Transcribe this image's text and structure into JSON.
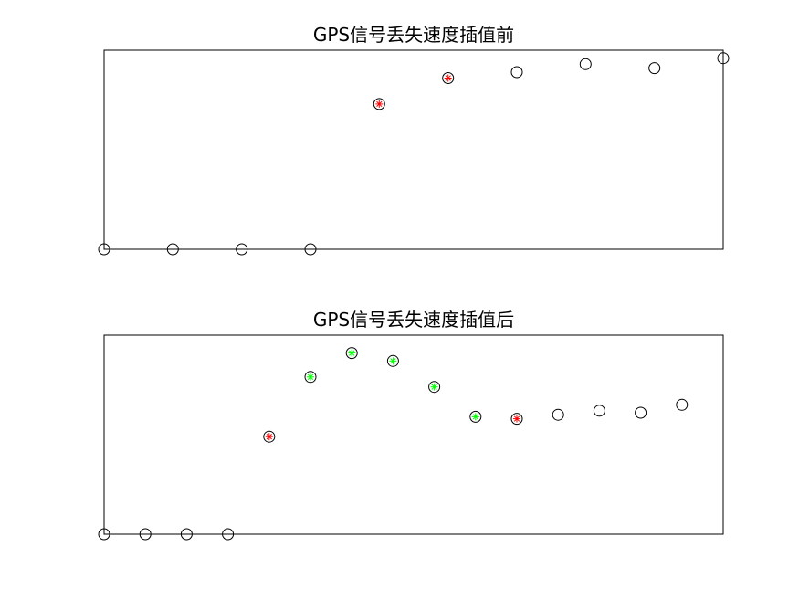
{
  "chart_data": [
    {
      "type": "scatter",
      "title": "GPS信号丢失速度插值前",
      "xlabel": "",
      "ylabel": "",
      "xlim": [
        1,
        10
      ],
      "ylim": [
        0,
        1
      ],
      "axes_visible": false,
      "grid": false,
      "legend": "none",
      "x": [
        1,
        2,
        3,
        4,
        5,
        6,
        7,
        8,
        9,
        10
      ],
      "y": [
        0,
        0,
        0,
        0,
        0.73,
        0.86,
        0.89,
        0.93,
        0.91,
        0.96
      ],
      "highlight_indices": [
        4,
        5
      ],
      "highlight_color": "#ff0000",
      "marker": "circle"
    },
    {
      "type": "scatter",
      "title": "GPS信号丢失速度插值后",
      "xlabel": "",
      "ylabel": "",
      "xlim": [
        1,
        16
      ],
      "ylim": [
        0,
        1
      ],
      "axes_visible": false,
      "grid": false,
      "legend": "none",
      "x": [
        1,
        2,
        3,
        4,
        5,
        6,
        7,
        8,
        9,
        10,
        11,
        12,
        13,
        14,
        15
      ],
      "y": [
        0,
        0,
        0,
        0,
        0.49,
        0.79,
        0.91,
        0.87,
        0.74,
        0.59,
        0.58,
        0.6,
        0.62,
        0.61,
        0.65
      ],
      "highlight_indices": [
        4,
        10
      ],
      "highlight_color": "#ff0000",
      "interpolated_indices": [
        5,
        6,
        7,
        8,
        9
      ],
      "interpolated_color": "#00ff00",
      "marker": "circle"
    }
  ]
}
